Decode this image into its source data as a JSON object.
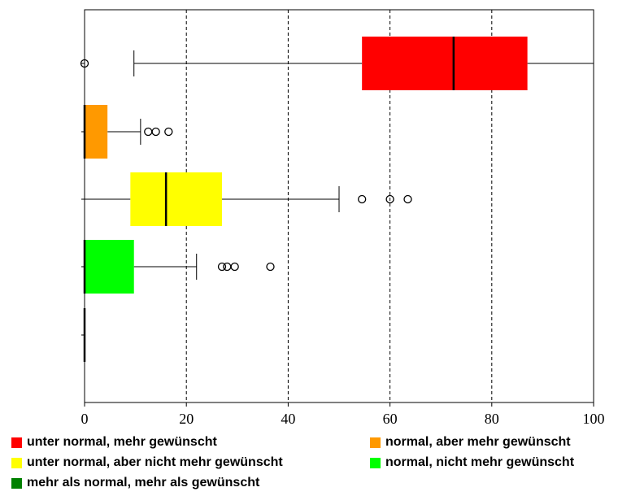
{
  "chart_data": {
    "type": "boxplot",
    "orientation": "horizontal",
    "title": "",
    "xlabel": "",
    "ylabel": "",
    "xlim": [
      0,
      100
    ],
    "xticks": [
      "0",
      "20",
      "40",
      "60",
      "80",
      "100"
    ],
    "grid": "vertical dashed lines at x ticks",
    "legend_position": "bottom",
    "series": [
      {
        "name": "unter normal, mehr gewünscht",
        "color": "#ff0000",
        "whisker_low": 9.7,
        "q1": 54.5,
        "median": 72.5,
        "q3": 87.0,
        "whisker_high": 100,
        "outliers": [
          0
        ]
      },
      {
        "name": "normal, aber mehr gewünscht",
        "color": "#ff9900",
        "whisker_low": 0,
        "q1": 0,
        "median": 0,
        "q3": 4.5,
        "whisker_high": 11,
        "outliers": [
          12.5,
          14,
          16.5
        ]
      },
      {
        "name": "unter normal, aber nicht mehr gewünscht",
        "color": "#ffff00",
        "whisker_low": 0,
        "q1": 9,
        "median": 16,
        "q3": 27,
        "whisker_high": 50,
        "outliers": [
          54.5,
          60,
          63.5
        ]
      },
      {
        "name": "normal, nicht mehr gewünscht",
        "color": "#00ff00",
        "whisker_low": 0,
        "q1": 0,
        "median": 0,
        "q3": 9.7,
        "whisker_high": 22,
        "outliers": [
          27,
          28,
          29.5,
          36.5
        ]
      },
      {
        "name": "mehr als normal, mehr als gewünscht",
        "color": "#008000",
        "whisker_low": 0,
        "q1": 0,
        "median": 0,
        "q3": 0,
        "whisker_high": 0,
        "outliers": []
      }
    ]
  }
}
